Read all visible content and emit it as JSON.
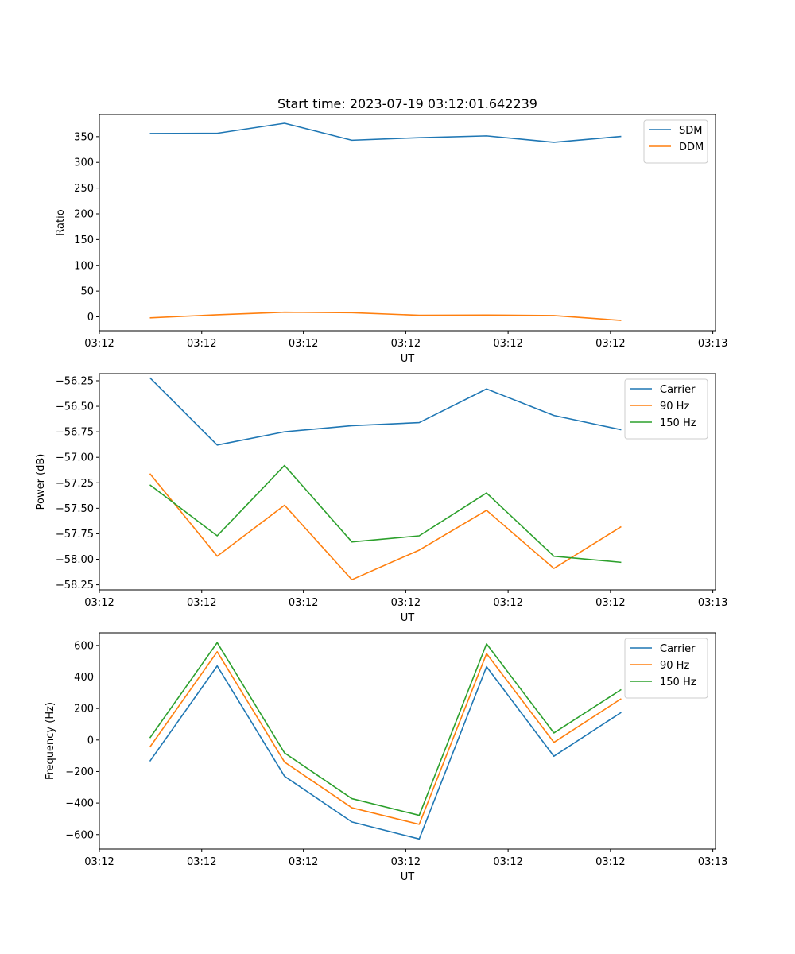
{
  "figure": {
    "title": "Start time: 2023-07-19 03:12:01.642239"
  },
  "chart_data": [
    {
      "type": "line",
      "title": "Start time: 2023-07-19 03:12:01.642239",
      "xlabel": "UT",
      "ylabel": "Ratio",
      "x": [
        0,
        1,
        2,
        3,
        4,
        5,
        6,
        7
      ],
      "xlim": [
        -0.75,
        8.4
      ],
      "ylim": [
        -27,
        393
      ],
      "xticks": [
        -0.75,
        0.77,
        2.28,
        3.8,
        5.32,
        6.84,
        8.36
      ],
      "xtick_labels": [
        "03:12",
        "03:12",
        "03:12",
        "03:12",
        "03:12",
        "03:12",
        "03:13"
      ],
      "yticks": [
        0,
        50,
        100,
        150,
        200,
        250,
        300,
        350
      ],
      "ytick_labels": [
        "0",
        "50",
        "100",
        "150",
        "200",
        "250",
        "300",
        "350"
      ],
      "legend_position": "top-right",
      "grid": false,
      "series": [
        {
          "name": "SDM",
          "color": "#1f77b4",
          "values": [
            356,
            356.5,
            376,
            343,
            348,
            351.5,
            339,
            350.5
          ]
        },
        {
          "name": "DDM",
          "color": "#ff7f0e",
          "values": [
            -2,
            4,
            9,
            8,
            3,
            3.5,
            2.5,
            -7
          ]
        }
      ]
    },
    {
      "type": "line",
      "xlabel": "UT",
      "ylabel": "Power (dB)",
      "x": [
        0,
        1,
        2,
        3,
        4,
        5,
        6,
        7
      ],
      "xlim": [
        -0.75,
        8.4
      ],
      "ylim": [
        -58.3,
        -56.18
      ],
      "xticks": [
        -0.75,
        0.77,
        2.28,
        3.8,
        5.32,
        6.84,
        8.36
      ],
      "xtick_labels": [
        "03:12",
        "03:12",
        "03:12",
        "03:12",
        "03:12",
        "03:12",
        "03:13"
      ],
      "yticks": [
        -56.25,
        -56.5,
        -56.75,
        -57.0,
        -57.25,
        -57.5,
        -57.75,
        -58.0,
        -58.25
      ],
      "ytick_labels": [
        "−56.25",
        "−56.50",
        "−56.75",
        "−57.00",
        "−57.25",
        "−57.50",
        "−57.75",
        "−58.00",
        "−58.25"
      ],
      "legend_position": "top-right",
      "grid": false,
      "series": [
        {
          "name": "Carrier",
          "color": "#1f77b4",
          "values": [
            -56.22,
            -56.88,
            -56.75,
            -56.69,
            -56.66,
            -56.33,
            -56.59,
            -56.73
          ]
        },
        {
          "name": "90 Hz",
          "color": "#ff7f0e",
          "values": [
            -57.16,
            -57.97,
            -57.47,
            -58.2,
            -57.91,
            -57.52,
            -58.09,
            -57.68
          ]
        },
        {
          "name": "150 Hz",
          "color": "#2ca02c",
          "values": [
            -57.27,
            -57.77,
            -57.08,
            -57.83,
            -57.77,
            -57.35,
            -57.97,
            -58.03
          ]
        }
      ]
    },
    {
      "type": "line",
      "xlabel": "UT",
      "ylabel": "Frequency (Hz)",
      "x": [
        0,
        1,
        2,
        3,
        4,
        5,
        6,
        7
      ],
      "xlim": [
        -0.75,
        8.4
      ],
      "ylim": [
        -692,
        680
      ],
      "xticks": [
        -0.75,
        0.77,
        2.28,
        3.8,
        5.32,
        6.84,
        8.36
      ],
      "xtick_labels": [
        "03:12",
        "03:12",
        "03:12",
        "03:12",
        "03:12",
        "03:12",
        "03:13"
      ],
      "yticks": [
        600,
        400,
        200,
        0,
        -200,
        -400,
        -600
      ],
      "ytick_labels": [
        "600",
        "400",
        "200",
        "0",
        "−200",
        "−400",
        "−600"
      ],
      "legend_position": "top-right",
      "grid": false,
      "series": [
        {
          "name": "Carrier",
          "color": "#1f77b4",
          "values": [
            -135,
            470,
            -230,
            -520,
            -628,
            465,
            -103,
            175
          ]
        },
        {
          "name": "90 Hz",
          "color": "#ff7f0e",
          "values": [
            -45,
            560,
            -140,
            -430,
            -535,
            548,
            -15,
            262
          ]
        },
        {
          "name": "150 Hz",
          "color": "#2ca02c",
          "values": [
            13,
            618,
            -82,
            -372,
            -478,
            610,
            45,
            320
          ]
        }
      ]
    }
  ]
}
